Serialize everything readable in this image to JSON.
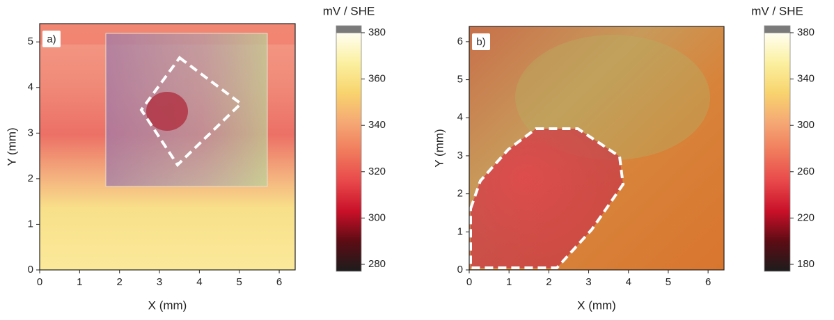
{
  "chart_data": [
    {
      "type": "heatmap",
      "panel_label": "a)",
      "xlabel": "X (mm)",
      "ylabel": "Y (mm)",
      "xlim": [
        0,
        6.4
      ],
      "ylim": [
        0,
        5.4
      ],
      "xticks": [
        0,
        1,
        2,
        3,
        4,
        5,
        6
      ],
      "yticks": [
        0,
        1,
        2,
        3,
        4,
        5
      ],
      "colorbar_title": "mV / SHE",
      "clim": [
        277,
        383
      ],
      "cticks": [
        280,
        300,
        320,
        340,
        360,
        380
      ],
      "colormap": [
        "#1c1c1c",
        "#5c0c14",
        "#c81028",
        "#e8474a",
        "#f07a5c",
        "#f5a874",
        "#f8d46e",
        "#fbf0a0",
        "#fffef0",
        "#7a7a7a"
      ]
    },
    {
      "type": "heatmap",
      "panel_label": "b)",
      "xlabel": "X (mm)",
      "ylabel": "Y (mm)",
      "xlim": [
        0,
        6.4
      ],
      "ylim": [
        0,
        6.4
      ],
      "xticks": [
        0,
        1,
        2,
        3,
        4,
        5,
        6
      ],
      "yticks": [
        0,
        1,
        2,
        3,
        4,
        5,
        6
      ],
      "colorbar_title": "mV / SHE",
      "clim": [
        174,
        386
      ],
      "cticks": [
        180,
        220,
        260,
        300,
        340,
        380
      ],
      "colormap": [
        "#1c1c1c",
        "#5c0c14",
        "#c81028",
        "#e8474a",
        "#f07a5c",
        "#f5a874",
        "#f8d46e",
        "#fbf0a0",
        "#fffef0",
        "#7a7a7a"
      ]
    }
  ]
}
